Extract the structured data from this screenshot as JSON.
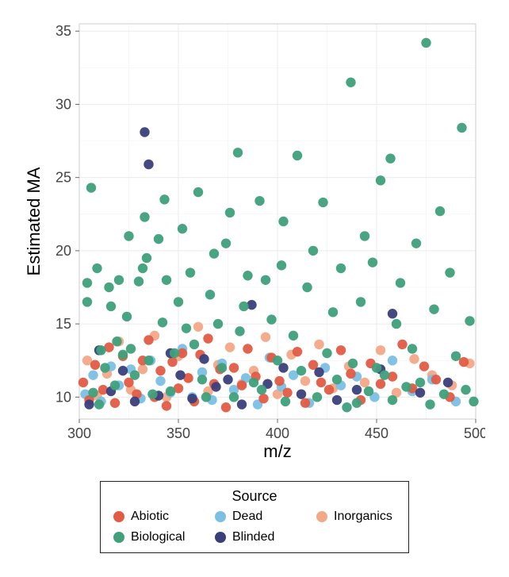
{
  "chart": {
    "type": "scatter",
    "x_label": "m/z",
    "y_label": "Estimated MA",
    "xlim": [
      300,
      500
    ],
    "ylim": [
      8.5,
      35.5
    ],
    "x_ticks": [
      300,
      350,
      400,
      450,
      500
    ],
    "y_ticks": [
      10,
      15,
      20,
      25,
      30,
      35
    ],
    "x_minor": [
      325,
      375,
      425,
      475
    ],
    "y_minor": [
      12.5,
      17.5,
      22.5,
      27.5,
      32.5
    ],
    "background_color": "#ffffff",
    "grid_major_color": "#ebebeb",
    "grid_minor_color": "#f4f4f4",
    "panel_border_color": "#cccccc",
    "axis_title_fontsize": 22,
    "tick_label_fontsize": 18,
    "point_radius": 6.2,
    "point_opacity": 0.95,
    "series_colors": {
      "Abiotic": "#e15b45",
      "Biological": "#3fa07a",
      "Dead": "#7bbfe3",
      "Blinded": "#3a3f7a",
      "Inorganics": "#f2a988"
    },
    "legend": {
      "title": "Source",
      "items": [
        "Abiotic",
        "Dead",
        "Inorganics",
        "Biological",
        "Blinded"
      ],
      "border_color": "#000000",
      "title_fontsize": 18,
      "item_fontsize": 16
    },
    "series": {
      "Biological": [
        [
          304,
          17.8
        ],
        [
          304,
          16.5
        ],
        [
          306,
          24.3
        ],
        [
          307,
          10.3
        ],
        [
          309,
          18.8
        ],
        [
          310,
          9.5
        ],
        [
          311,
          13.2
        ],
        [
          313,
          12.0
        ],
        [
          315,
          17.5
        ],
        [
          316,
          16.2
        ],
        [
          318,
          10.8
        ],
        [
          319,
          13.8
        ],
        [
          320,
          18.0
        ],
        [
          322,
          12.9
        ],
        [
          324,
          15.5
        ],
        [
          325,
          21.0
        ],
        [
          326,
          13.3
        ],
        [
          328,
          11.5
        ],
        [
          330,
          17.9
        ],
        [
          332,
          18.8
        ],
        [
          333,
          22.3
        ],
        [
          334,
          19.5
        ],
        [
          335,
          12.5
        ],
        [
          337,
          10.2
        ],
        [
          340,
          20.8
        ],
        [
          342,
          15.1
        ],
        [
          343,
          23.5
        ],
        [
          344,
          18.0
        ],
        [
          346,
          10.4
        ],
        [
          348,
          13.0
        ],
        [
          350,
          16.5
        ],
        [
          352,
          21.5
        ],
        [
          354,
          14.7
        ],
        [
          356,
          18.5
        ],
        [
          358,
          13.6
        ],
        [
          360,
          24.0
        ],
        [
          362,
          11.2
        ],
        [
          364,
          10.0
        ],
        [
          366,
          17.0
        ],
        [
          368,
          19.8
        ],
        [
          370,
          15.0
        ],
        [
          372,
          12.0
        ],
        [
          374,
          20.5
        ],
        [
          376,
          22.6
        ],
        [
          378,
          10.0
        ],
        [
          380,
          26.7
        ],
        [
          381,
          14.5
        ],
        [
          383,
          16.2
        ],
        [
          385,
          18.3
        ],
        [
          388,
          11.0
        ],
        [
          391,
          23.4
        ],
        [
          392,
          10.5
        ],
        [
          394,
          18.0
        ],
        [
          397,
          15.3
        ],
        [
          400,
          12.5
        ],
        [
          402,
          19.0
        ],
        [
          403,
          22.0
        ],
        [
          404,
          9.7
        ],
        [
          408,
          14.2
        ],
        [
          410,
          26.5
        ],
        [
          412,
          11.8
        ],
        [
          415,
          17.5
        ],
        [
          418,
          20.0
        ],
        [
          420,
          10.0
        ],
        [
          423,
          23.3
        ],
        [
          425,
          13.0
        ],
        [
          428,
          15.8
        ],
        [
          430,
          11.2
        ],
        [
          432,
          18.8
        ],
        [
          435,
          9.3
        ],
        [
          437,
          31.5
        ],
        [
          438,
          12.3
        ],
        [
          440,
          9.6
        ],
        [
          442,
          16.5
        ],
        [
          444,
          21.0
        ],
        [
          446,
          10.4
        ],
        [
          448,
          19.2
        ],
        [
          450,
          12.0
        ],
        [
          452,
          24.8
        ],
        [
          454,
          11.5
        ],
        [
          457,
          26.3
        ],
        [
          458,
          9.8
        ],
        [
          460,
          15.0
        ],
        [
          462,
          17.8
        ],
        [
          465,
          10.7
        ],
        [
          468,
          13.3
        ],
        [
          470,
          20.5
        ],
        [
          472,
          11.0
        ],
        [
          475,
          34.2
        ],
        [
          477,
          9.5
        ],
        [
          479,
          16.0
        ],
        [
          482,
          22.7
        ],
        [
          484,
          10.2
        ],
        [
          487,
          18.5
        ],
        [
          490,
          12.8
        ],
        [
          493,
          28.4
        ],
        [
          495,
          10.5
        ],
        [
          497,
          15.2
        ],
        [
          499,
          9.7
        ]
      ],
      "Abiotic": [
        [
          302,
          11.0
        ],
        [
          305,
          9.8
        ],
        [
          308,
          12.2
        ],
        [
          312,
          10.5
        ],
        [
          315,
          13.4
        ],
        [
          318,
          9.6
        ],
        [
          322,
          12.8
        ],
        [
          325,
          11.0
        ],
        [
          329,
          10.2
        ],
        [
          332,
          12.5
        ],
        [
          335,
          13.9
        ],
        [
          338,
          10.0
        ],
        [
          341,
          11.8
        ],
        [
          344,
          9.4
        ],
        [
          347,
          12.4
        ],
        [
          350,
          10.6
        ],
        [
          352,
          13.0
        ],
        [
          355,
          11.3
        ],
        [
          358,
          9.7
        ],
        [
          361,
          12.9
        ],
        [
          365,
          14.0
        ],
        [
          368,
          10.9
        ],
        [
          371,
          11.9
        ],
        [
          374,
          9.3
        ],
        [
          378,
          12.0
        ],
        [
          382,
          10.8
        ],
        [
          385,
          13.3
        ],
        [
          389,
          11.4
        ],
        [
          393,
          9.9
        ],
        [
          397,
          12.7
        ],
        [
          401,
          11.1
        ],
        [
          405,
          10.3
        ],
        [
          410,
          13.1
        ],
        [
          414,
          9.6
        ],
        [
          418,
          12.2
        ],
        [
          422,
          11.0
        ],
        [
          426,
          10.5
        ],
        [
          432,
          13.2
        ],
        [
          437,
          11.6
        ],
        [
          442,
          9.8
        ],
        [
          447,
          12.3
        ],
        [
          452,
          10.9
        ],
        [
          458,
          11.4
        ],
        [
          463,
          13.6
        ],
        [
          468,
          10.6
        ],
        [
          474,
          12.1
        ],
        [
          480,
          11.2
        ],
        [
          487,
          10.0
        ],
        [
          494,
          12.4
        ]
      ],
      "Dead": [
        [
          303,
          10.2
        ],
        [
          307,
          11.5
        ],
        [
          311,
          9.7
        ],
        [
          316,
          12.1
        ],
        [
          320,
          10.8
        ],
        [
          326,
          11.9
        ],
        [
          331,
          9.9
        ],
        [
          336,
          12.5
        ],
        [
          341,
          11.1
        ],
        [
          346,
          10.3
        ],
        [
          352,
          13.3
        ],
        [
          357,
          10.0
        ],
        [
          362,
          11.7
        ],
        [
          367,
          9.8
        ],
        [
          372,
          12.3
        ],
        [
          378,
          10.5
        ],
        [
          384,
          11.3
        ],
        [
          390,
          9.5
        ],
        [
          396,
          12.7
        ],
        [
          402,
          10.7
        ],
        [
          408,
          11.5
        ],
        [
          416,
          9.6
        ],
        [
          424,
          12.0
        ],
        [
          432,
          10.8
        ],
        [
          440,
          11.4
        ],
        [
          449,
          10.0
        ],
        [
          458,
          12.5
        ],
        [
          468,
          10.4
        ],
        [
          478,
          11.2
        ],
        [
          490,
          9.7
        ]
      ],
      "Inorganics": [
        [
          304,
          12.5
        ],
        [
          309,
          10.1
        ],
        [
          314,
          11.6
        ],
        [
          320,
          13.8
        ],
        [
          326,
          10.5
        ],
        [
          332,
          11.9
        ],
        [
          338,
          14.2
        ],
        [
          344,
          10.0
        ],
        [
          350,
          12.8
        ],
        [
          355,
          11.3
        ],
        [
          360,
          14.8
        ],
        [
          365,
          10.4
        ],
        [
          370,
          12.2
        ],
        [
          376,
          13.4
        ],
        [
          382,
          10.9
        ],
        [
          388,
          11.8
        ],
        [
          394,
          14.1
        ],
        [
          400,
          10.2
        ],
        [
          407,
          12.9
        ],
        [
          414,
          11.1
        ],
        [
          421,
          13.6
        ],
        [
          428,
          10.6
        ],
        [
          436,
          12.1
        ],
        [
          444,
          11.0
        ],
        [
          452,
          13.2
        ],
        [
          460,
          10.3
        ],
        [
          469,
          12.6
        ],
        [
          478,
          11.5
        ],
        [
          488,
          10.8
        ],
        [
          497,
          12.3
        ]
      ],
      "Blinded": [
        [
          305,
          9.5
        ],
        [
          310,
          13.2
        ],
        [
          316,
          10.4
        ],
        [
          322,
          11.8
        ],
        [
          328,
          9.7
        ],
        [
          333,
          28.1
        ],
        [
          335,
          25.9
        ],
        [
          340,
          10.1
        ],
        [
          346,
          13.0
        ],
        [
          351,
          11.5
        ],
        [
          357,
          9.9
        ],
        [
          363,
          12.6
        ],
        [
          369,
          10.7
        ],
        [
          375,
          11.2
        ],
        [
          382,
          9.5
        ],
        [
          387,
          16.3
        ],
        [
          395,
          10.9
        ],
        [
          403,
          12.0
        ],
        [
          412,
          10.2
        ],
        [
          421,
          11.7
        ],
        [
          430,
          9.8
        ],
        [
          440,
          10.5
        ],
        [
          452,
          11.9
        ],
        [
          458,
          15.7
        ],
        [
          472,
          10.3
        ],
        [
          486,
          11.0
        ]
      ]
    }
  }
}
